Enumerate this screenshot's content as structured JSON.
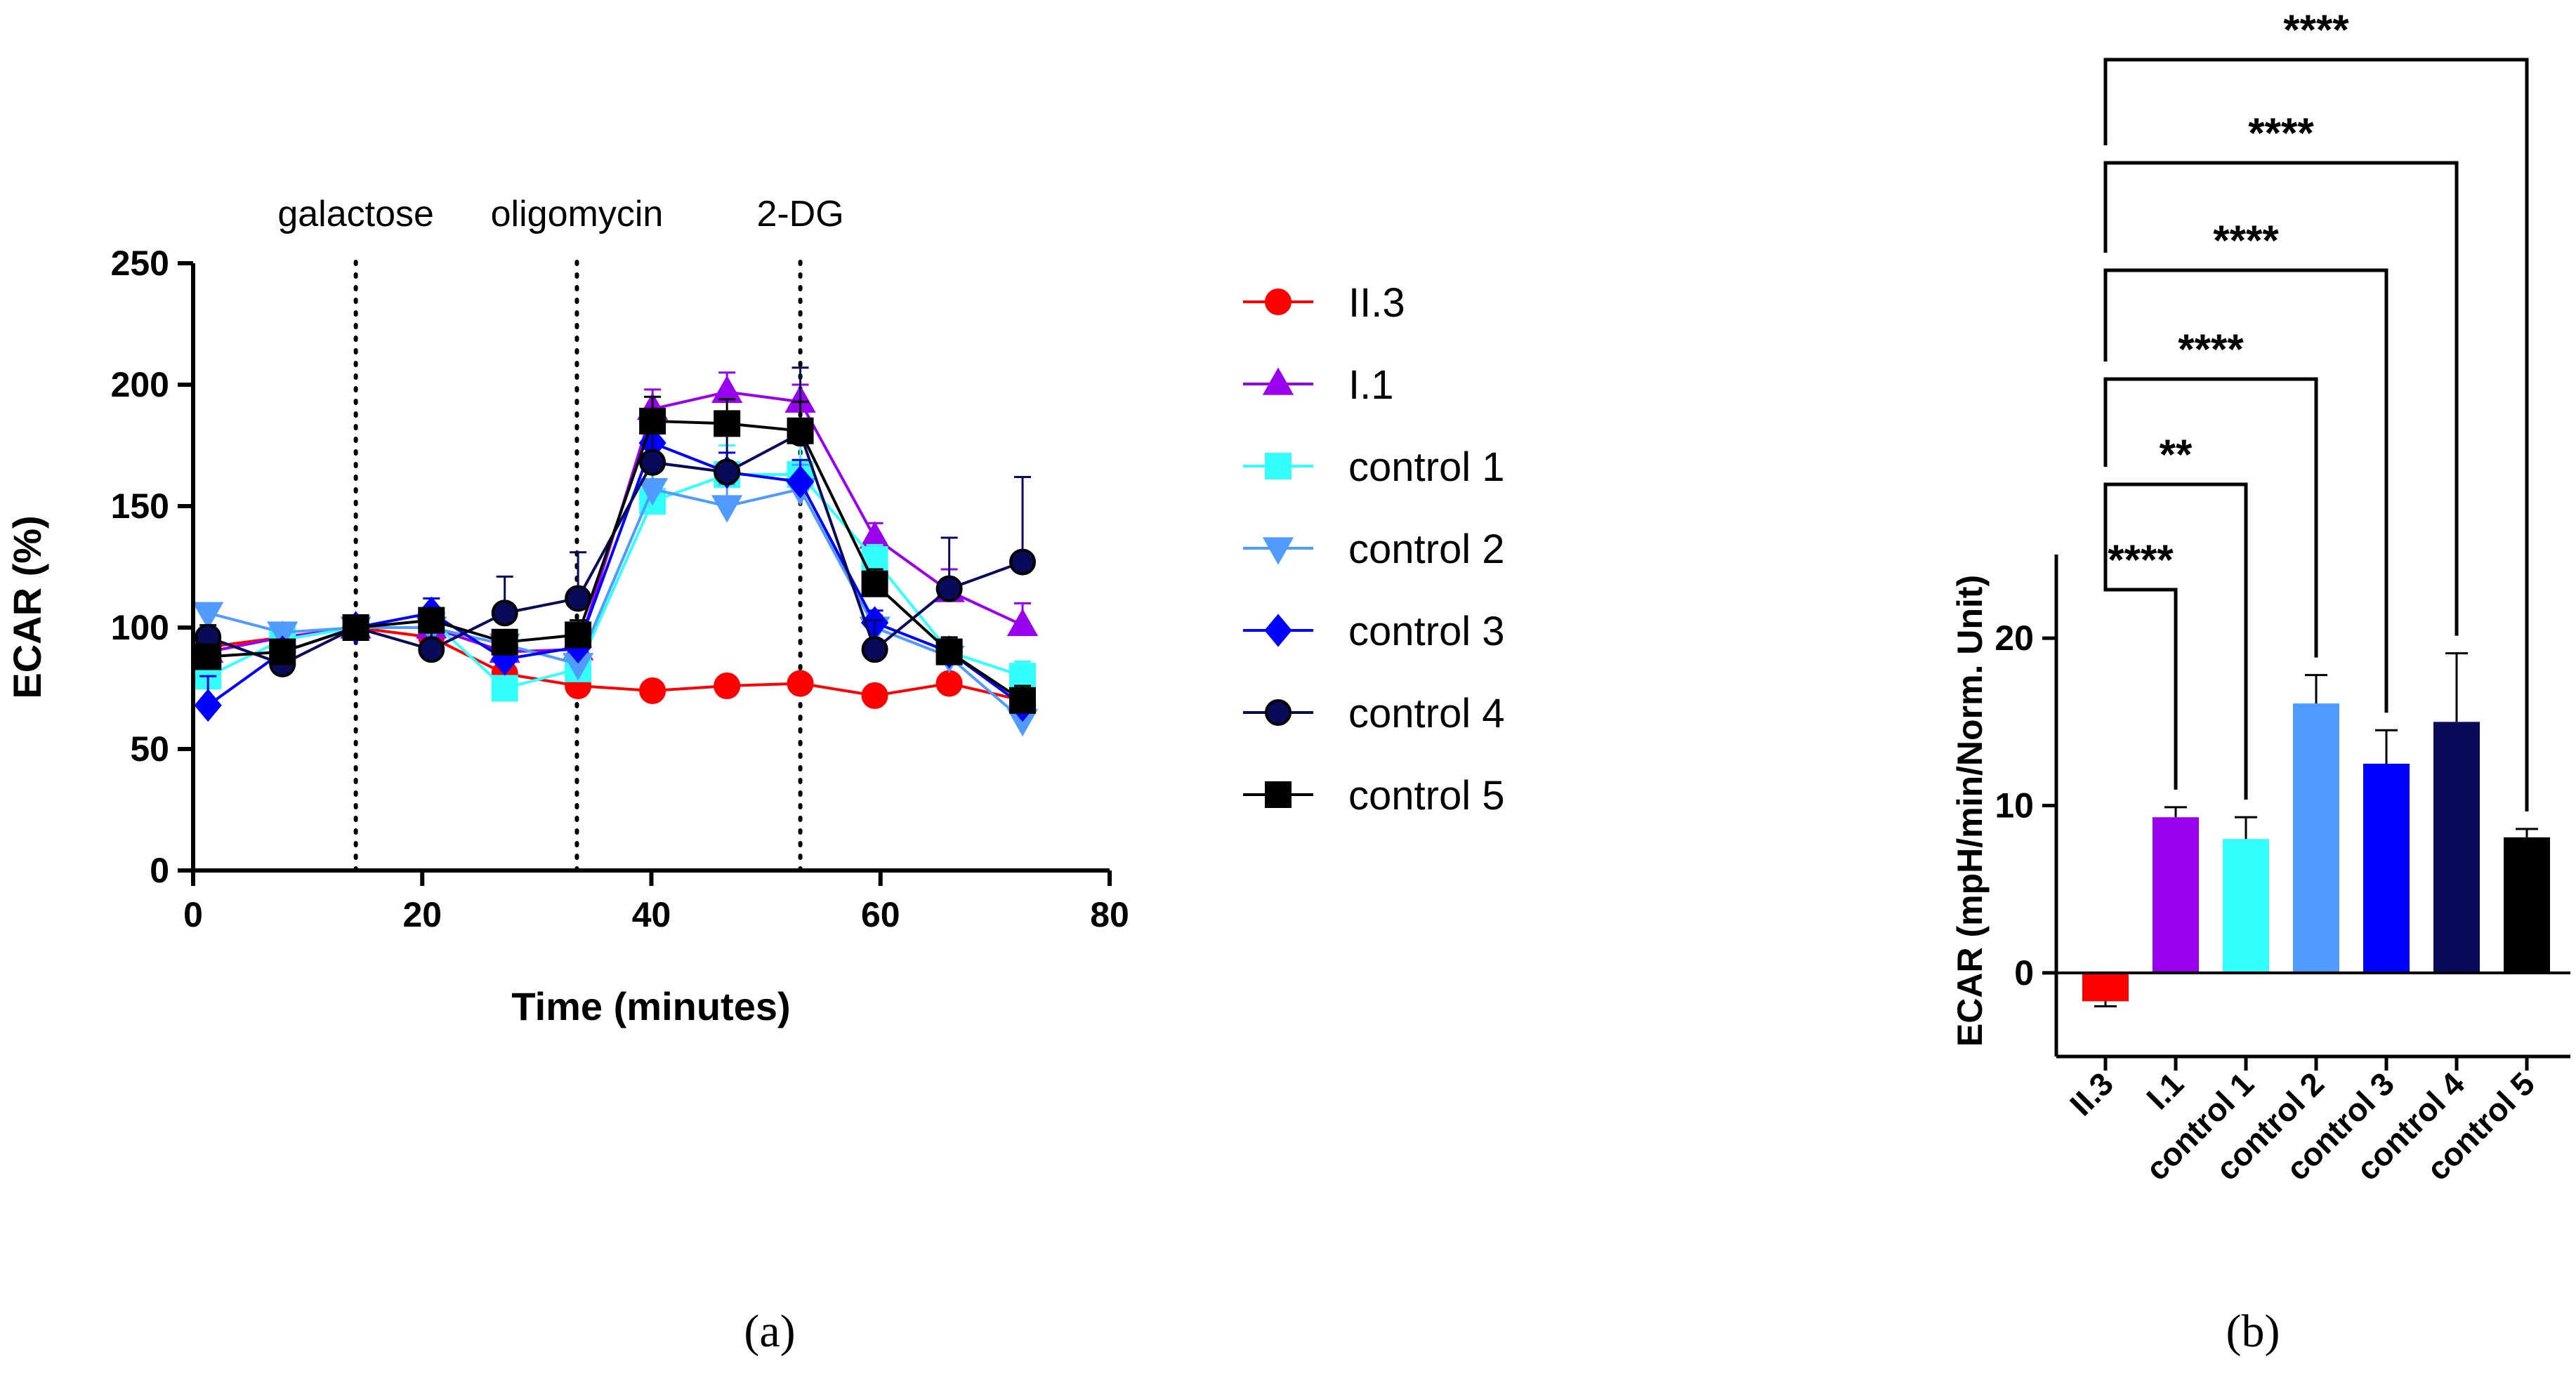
{
  "panel_labels": {
    "a": "(a)",
    "b": "(b)"
  },
  "chart_data": [
    {
      "type": "line",
      "panel": "(a)",
      "title": "",
      "xlabel": "Time (minutes)",
      "ylabel": "ECAR (%)",
      "xlim": [
        0,
        80
      ],
      "ylim": [
        0,
        250
      ],
      "xticks": [
        0,
        20,
        40,
        60,
        80
      ],
      "yticks": [
        0,
        50,
        100,
        150,
        200,
        250
      ],
      "grid": false,
      "legend_position": "right",
      "annotations": [
        {
          "text": "galactose",
          "x": 14.2
        },
        {
          "text": "oligomycin",
          "x": 33.5
        },
        {
          "text": "2-DG",
          "x": 53
        }
      ],
      "x": [
        1.3,
        7.8,
        14.2,
        20.8,
        27.2,
        33.6,
        40.1,
        46.6,
        53.0,
        59.5,
        66.0,
        72.4
      ],
      "series": [
        {
          "name": "II.3",
          "color": "#ff0000",
          "marker": "circle",
          "values": [
            92,
            96,
            100,
            96,
            81,
            76,
            74,
            76,
            77,
            72,
            77,
            70
          ],
          "errors": [
            2,
            2,
            0,
            2,
            2,
            2,
            1,
            1,
            1,
            1,
            1,
            1
          ]
        },
        {
          "name": "I.1",
          "color": "#9900ee",
          "marker": "triangle-up",
          "values": [
            90,
            96,
            100,
            100,
            90,
            91,
            190,
            197,
            193,
            137,
            115,
            101
          ],
          "errors": [
            3,
            3,
            0,
            4,
            4,
            5,
            8,
            8,
            7,
            6,
            9,
            9
          ]
        },
        {
          "name": "control 1",
          "color": "#33ffff",
          "marker": "square",
          "values": [
            80,
            95,
            100,
            103,
            75,
            83,
            152,
            163,
            163,
            128,
            90,
            80
          ],
          "errors": [
            4,
            4,
            0,
            4,
            4,
            4,
            15,
            12,
            14,
            6,
            6,
            6
          ]
        },
        {
          "name": "control 2",
          "color": "#4f9bff",
          "marker": "triangle-down",
          "values": [
            106,
            98,
            100,
            100,
            93,
            85,
            157,
            150,
            157,
            100,
            88,
            62
          ],
          "errors": [
            3,
            3,
            0,
            4,
            4,
            4,
            8,
            9,
            10,
            5,
            5,
            5
          ]
        },
        {
          "name": "control 3",
          "color": "#0000ff",
          "marker": "diamond",
          "values": [
            68,
            90,
            100,
            106,
            87,
            92,
            176,
            164,
            160,
            102,
            90,
            68
          ],
          "errors": [
            12,
            5,
            0,
            6,
            4,
            5,
            9,
            8,
            9,
            5,
            5,
            5
          ]
        },
        {
          "name": "control 4",
          "color": "#0a0a5a",
          "marker": "circle",
          "values": [
            96,
            85,
            100,
            91,
            106,
            112,
            168,
            164,
            180,
            91,
            116,
            127
          ],
          "errors": [
            5,
            7,
            0,
            12,
            15,
            19,
            15,
            23,
            27,
            12,
            21,
            35
          ]
        },
        {
          "name": "control 5",
          "color": "#000000",
          "marker": "square",
          "values": [
            88,
            90,
            100,
            103,
            94,
            97,
            185,
            184,
            181,
            118,
            90,
            70
          ],
          "errors": [
            4,
            4,
            0,
            5,
            5,
            6,
            10,
            10,
            12,
            6,
            6,
            6
          ]
        }
      ]
    },
    {
      "type": "bar",
      "panel": "(b)",
      "title": "",
      "xlabel": "",
      "ylabel": "ECAR (mpH/min/Norm. Unit)",
      "ylim": [
        -5,
        25
      ],
      "yticks": [
        0,
        10,
        20
      ],
      "grid": false,
      "categories": [
        "II.3",
        "I.1",
        "control 1",
        "control 2",
        "control 3",
        "control 4",
        "control 5"
      ],
      "values": [
        -1.7,
        9.3,
        8.0,
        16.1,
        12.5,
        15.0,
        8.1
      ],
      "errors": [
        0.3,
        0.6,
        1.3,
        1.7,
        2.0,
        4.1,
        0.5
      ],
      "colors": [
        "#ff0000",
        "#9900ee",
        "#33ffff",
        "#4f9bff",
        "#0000ff",
        "#0a0a5a",
        "#000000"
      ],
      "significance": [
        {
          "from": "II.3",
          "to": "I.1",
          "label": "****"
        },
        {
          "from": "II.3",
          "to": "control 1",
          "label": "**"
        },
        {
          "from": "II.3",
          "to": "control 2",
          "label": "****"
        },
        {
          "from": "II.3",
          "to": "control 3",
          "label": "****"
        },
        {
          "from": "II.3",
          "to": "control 4",
          "label": "****"
        },
        {
          "from": "II.3",
          "to": "control 5",
          "label": "****"
        }
      ]
    }
  ]
}
